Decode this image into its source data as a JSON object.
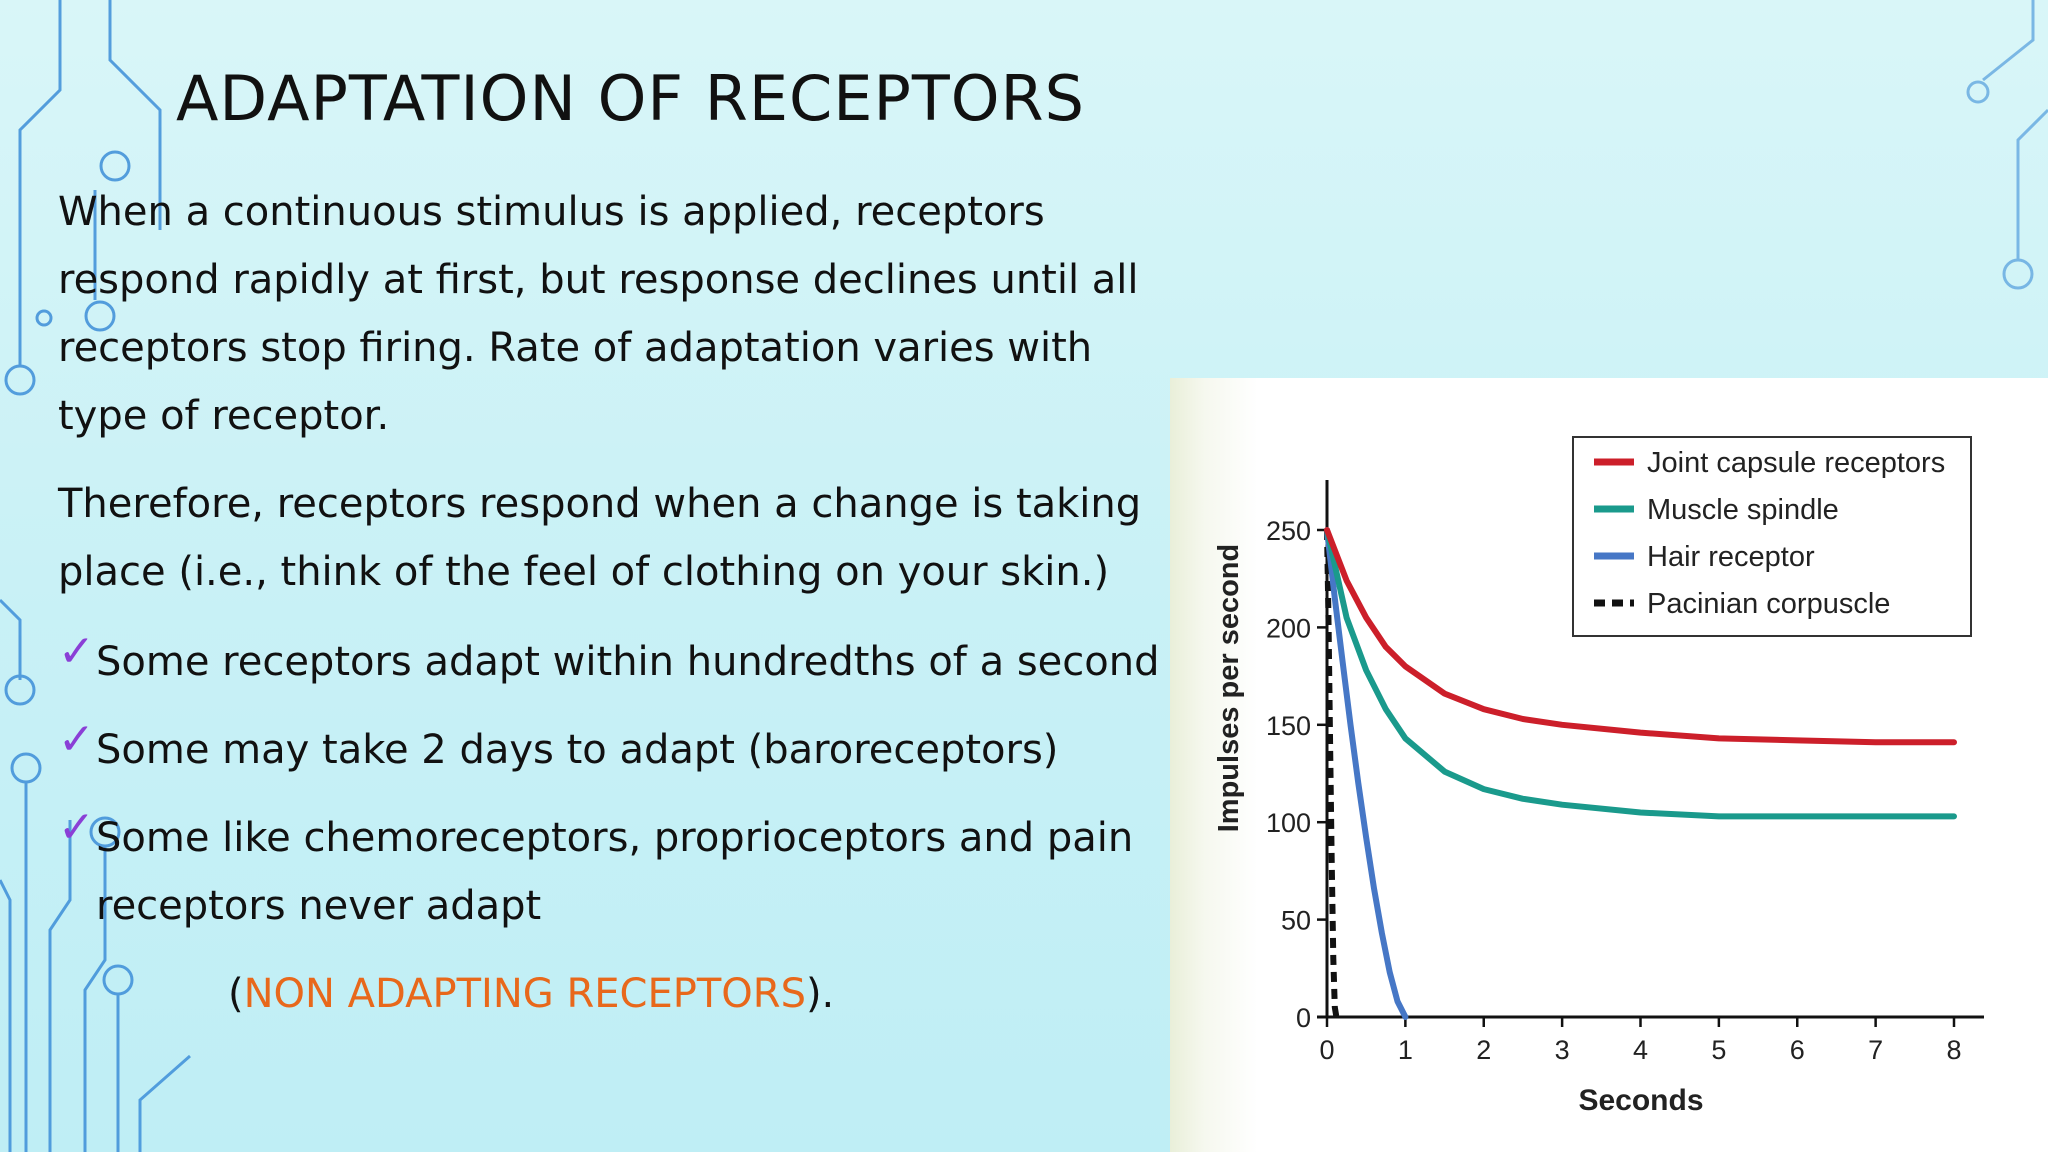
{
  "slide": {
    "title": "ADAPTATION OF RECEPTORS",
    "paragraph1": "When a continuous stimulus is applied, receptors respond rapidly at first, but response declines until all receptors stop firing. Rate of adaptation varies with type of receptor.",
    "paragraph2": "Therefore, receptors respond when a change is taking place (i.e., think of the feel of clothing on your skin.)",
    "bullets": [
      "Some receptors adapt within hundredths of a second",
      "Some may take 2 days to adapt (baroreceptors)",
      "Some like chemoreceptors, proprioceptors and pain receptors never adapt"
    ],
    "note_open": "(",
    "note_highlight": "NON ADAPTING RECEPTORS",
    "note_close": ").",
    "check_glyph": "✓",
    "colors": {
      "check": "#8a3fd6",
      "highlight": "#e8681b",
      "circuit": "#3d8ed8"
    }
  },
  "chart_data": {
    "type": "line",
    "xlabel": "Seconds",
    "ylabel": "Impulses per second",
    "xlim": [
      0,
      8
    ],
    "ylim": [
      0,
      250
    ],
    "xticks": [
      0,
      1,
      2,
      3,
      4,
      5,
      6,
      7,
      8
    ],
    "yticks": [
      0,
      50,
      100,
      150,
      200,
      250
    ],
    "legend_position": "top-right",
    "series": [
      {
        "name": "Joint capsule receptors",
        "color": "#cc1f2a",
        "style": "solid",
        "x": [
          0,
          0.25,
          0.5,
          0.75,
          1,
          1.5,
          2,
          2.5,
          3,
          4,
          5,
          6,
          7,
          8
        ],
        "y": [
          250,
          224,
          205,
          190,
          180,
          166,
          158,
          153,
          150,
          146,
          143,
          142,
          141,
          141
        ]
      },
      {
        "name": "Muscle spindle",
        "color": "#1a9a8c",
        "style": "solid",
        "x": [
          0,
          0.25,
          0.5,
          0.75,
          1,
          1.5,
          2,
          2.5,
          3,
          4,
          5,
          6,
          7,
          8
        ],
        "y": [
          250,
          205,
          178,
          158,
          143,
          126,
          117,
          112,
          109,
          105,
          103,
          103,
          103,
          103
        ]
      },
      {
        "name": "Hair receptor",
        "color": "#4677c6",
        "style": "solid",
        "x": [
          0,
          0.1,
          0.2,
          0.3,
          0.4,
          0.5,
          0.6,
          0.7,
          0.8,
          0.9,
          1.0
        ],
        "y": [
          250,
          215,
          182,
          150,
          120,
          92,
          66,
          43,
          23,
          8,
          0
        ]
      },
      {
        "name": "Pacinian corpuscle",
        "color": "#111111",
        "style": "dashed",
        "x": [
          0,
          0.02,
          0.04,
          0.06,
          0.08,
          0.1,
          0.12
        ],
        "y": [
          250,
          200,
          140,
          80,
          30,
          5,
          0
        ]
      }
    ]
  }
}
